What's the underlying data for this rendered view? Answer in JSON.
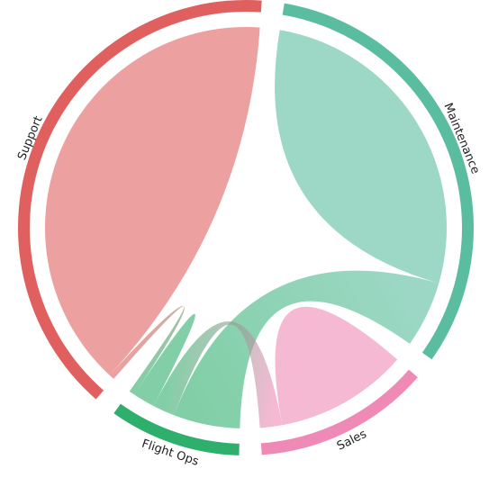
{
  "chart_data": {
    "type": "chord",
    "groups": [
      {
        "name": "Maintenance",
        "color": "#5bbd9f"
      },
      {
        "name": "Sales",
        "color": "#ee8ab5"
      },
      {
        "name": "Flight Ops",
        "color": "#2eaf6c"
      },
      {
        "name": "Support",
        "color": "#e0605f"
      }
    ],
    "matrix": [
      [
        30,
        0,
        6,
        0
      ],
      [
        0,
        12,
        2,
        0
      ],
      [
        6,
        2,
        2,
        0.5
      ],
      [
        0,
        0,
        0.5,
        44
      ]
    ]
  }
}
